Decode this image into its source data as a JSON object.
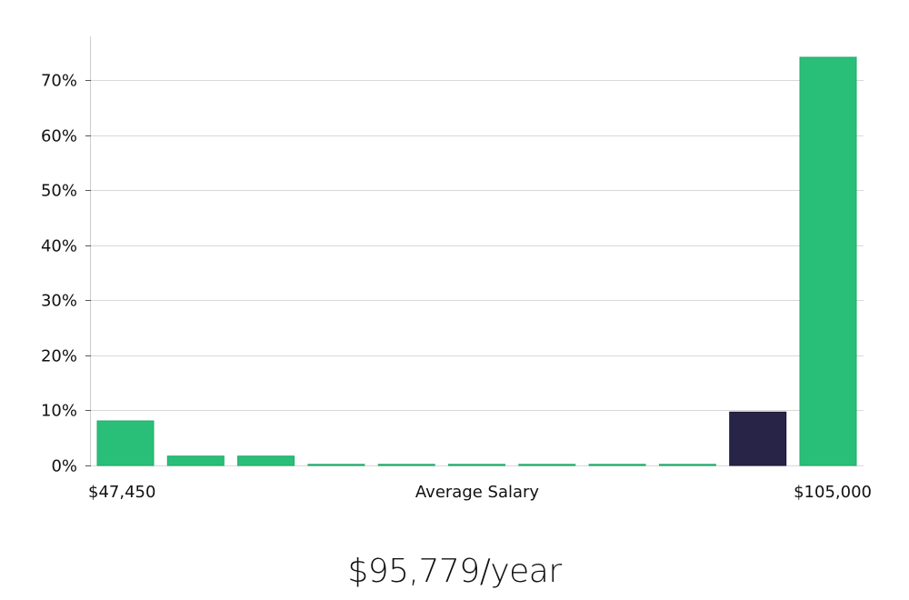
{
  "chart_data": {
    "type": "bar",
    "title": "",
    "xlabel": "Average Salary",
    "ylabel": "",
    "x_min_label": "$47,450",
    "x_max_label": "$105,000",
    "ylim": [
      0,
      78
    ],
    "yticks": [
      0,
      10,
      20,
      30,
      40,
      50,
      60,
      70
    ],
    "ytick_labels": [
      "0%",
      "10%",
      "20%",
      "30%",
      "40%",
      "50%",
      "60%",
      "70%"
    ],
    "values": [
      8.1,
      1.7,
      1.7,
      0.1,
      0.1,
      0.1,
      0.1,
      0.1,
      0.1,
      9.7,
      74.2
    ],
    "highlight_index": 9,
    "grid": true,
    "colors": {
      "bar": "#2abf79",
      "highlight": "#282448",
      "grid": "#d8d8d8",
      "axis": "#cccccc"
    }
  },
  "headline": "$95,779/year"
}
